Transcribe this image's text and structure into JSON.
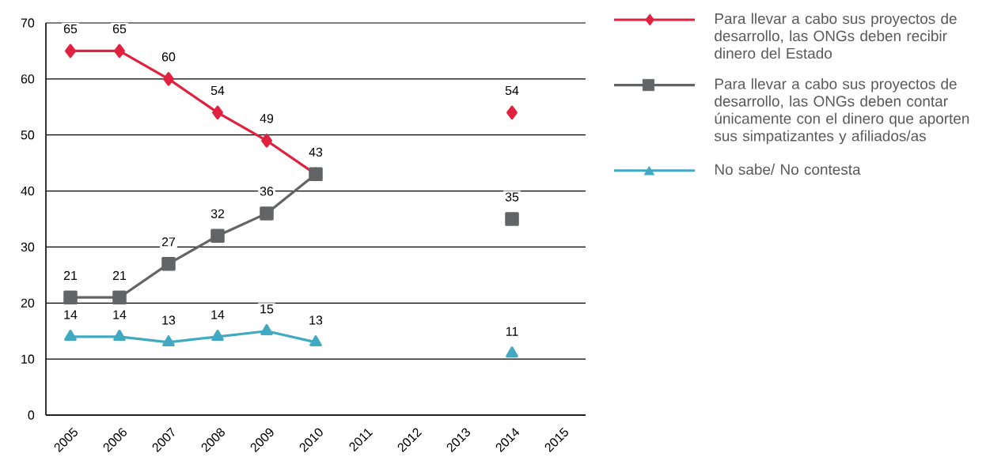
{
  "chart_data": {
    "type": "line",
    "categories": [
      "2005",
      "2006",
      "2007",
      "2008",
      "2009",
      "2010",
      "2011",
      "2012",
      "2013",
      "2014",
      "2015"
    ],
    "series": [
      {
        "name": "Para llevar a cabo sus proyectos de desarrollo, las ONGs deben recibir dinero del Estado",
        "color": "#e0213f",
        "marker": "diamond",
        "values": [
          65,
          65,
          60,
          54,
          49,
          43,
          null,
          null,
          null,
          54,
          null
        ]
      },
      {
        "name": "Para llevar a cabo sus proyectos de desarrollo, las ONGs deben contar únicamente con el dinero que aporten sus simpatizantes y afiliados/as",
        "color": "#636466",
        "marker": "square",
        "values": [
          21,
          21,
          27,
          32,
          36,
          43,
          null,
          null,
          null,
          35,
          null
        ],
        "value_labels": [
          "21",
          "21",
          "27",
          "32",
          "36",
          null,
          null,
          null,
          null,
          "35",
          null
        ]
      },
      {
        "name": "No sabe/ No contesta",
        "color": "#41a9c1",
        "marker": "triangle",
        "values": [
          14,
          14,
          13,
          14,
          15,
          13,
          null,
          null,
          null,
          11,
          null
        ]
      }
    ],
    "ylim": [
      0,
      70
    ],
    "yticks": [
      0,
      10,
      20,
      30,
      40,
      50,
      60,
      70
    ],
    "grid": "y",
    "legend": "right",
    "data_labels": true
  }
}
